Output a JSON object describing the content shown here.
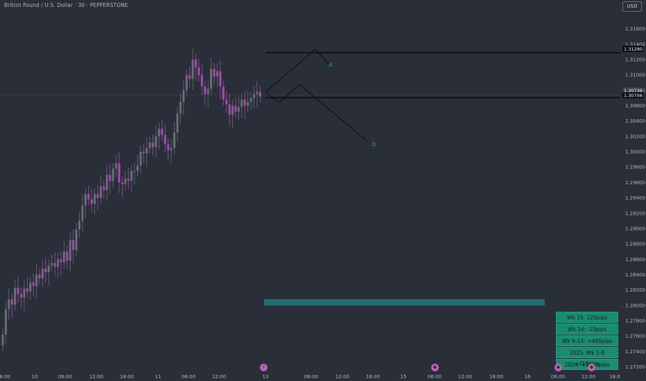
{
  "header": {
    "title": "British Pound / U.S. Dollar · 30 · PEPPERSTONE",
    "currency": "USD"
  },
  "colors": {
    "background": "#2a2e39",
    "candle_up": "#6b6f78",
    "candle_down": "#a64cb0",
    "line": "#0b0d12",
    "label_a": "#1fa183",
    "label_b": "#1fa183",
    "zone": "#1f6f75",
    "stat_box": "#198c72"
  },
  "chart_data": {
    "type": "candlestick",
    "y_axis": {
      "ticks": [
        "1.31600",
        "1.31400",
        "1.31200",
        "1.31000",
        "1.30800",
        "1.30600",
        "1.30400",
        "1.30200",
        "1.30000",
        "1.29800",
        "1.29600",
        "1.29400",
        "1.29200",
        "1.29000",
        "1.28800",
        "1.28600",
        "1.28400",
        "1.28200",
        "1.28000",
        "1.27800",
        "1.27600",
        "1.27400",
        "1.27200"
      ],
      "range": [
        1.2715,
        1.3185
      ]
    },
    "x_axis": {
      "ticks": [
        "8:00",
        "10",
        "06:00",
        "12:00",
        "18:00",
        "11",
        "06:00",
        "12:00",
        "13",
        "06:00",
        "12:00",
        "18:00",
        "15",
        "06:00",
        "12:00",
        "18:00",
        "16",
        "06:00",
        "12:00",
        "18:0"
      ]
    },
    "price_labels": [
      "1.31290",
      "1.30739",
      "1.30706"
    ],
    "levels": [
      {
        "name": "resistance",
        "price": 1.3129
      },
      {
        "name": "support",
        "price": 1.30706
      }
    ],
    "projection_labels": [
      "a",
      "b"
    ],
    "candle_closes": [
      1.2762,
      1.2795,
      1.2808,
      1.2801,
      1.2823,
      1.2815,
      1.281,
      1.2822,
      1.2818,
      1.283,
      1.2825,
      1.284,
      1.2835,
      1.2848,
      1.2843,
      1.2852,
      1.2855,
      1.285,
      1.286,
      1.2856,
      1.287,
      1.2858,
      1.2885,
      1.2872,
      1.2899,
      1.291,
      1.293,
      1.2945,
      1.2938,
      1.2932,
      1.2945,
      1.294,
      1.2955,
      1.295,
      1.297,
      1.2962,
      1.2978,
      1.2985,
      1.296,
      1.2958,
      1.2965,
      1.2962,
      1.2975,
      1.2975,
      1.2982,
      1.3,
      1.2998,
      1.3005,
      1.3012,
      1.3006,
      1.302,
      1.303,
      1.3022,
      1.301,
      1.3002,
      1.3005,
      1.3025,
      1.305,
      1.3065,
      1.308,
      1.31,
      1.3095,
      1.312,
      1.311,
      1.31,
      1.3085,
      1.3075,
      1.3082,
      1.3108,
      1.3098,
      1.3105,
      1.3085,
      1.3068,
      1.3062,
      1.3048,
      1.306,
      1.3052,
      1.3058,
      1.3068,
      1.306,
      1.3065,
      1.307,
      1.3075,
      1.3078,
      1.3072
    ]
  },
  "stats": [
    "Wk 15: 125pips",
    "Wk 14: -15pips",
    "Wk 9-13: +465pips",
    "2025: Wk 2-8 +710pips",
    "2024: +1220pips"
  ]
}
